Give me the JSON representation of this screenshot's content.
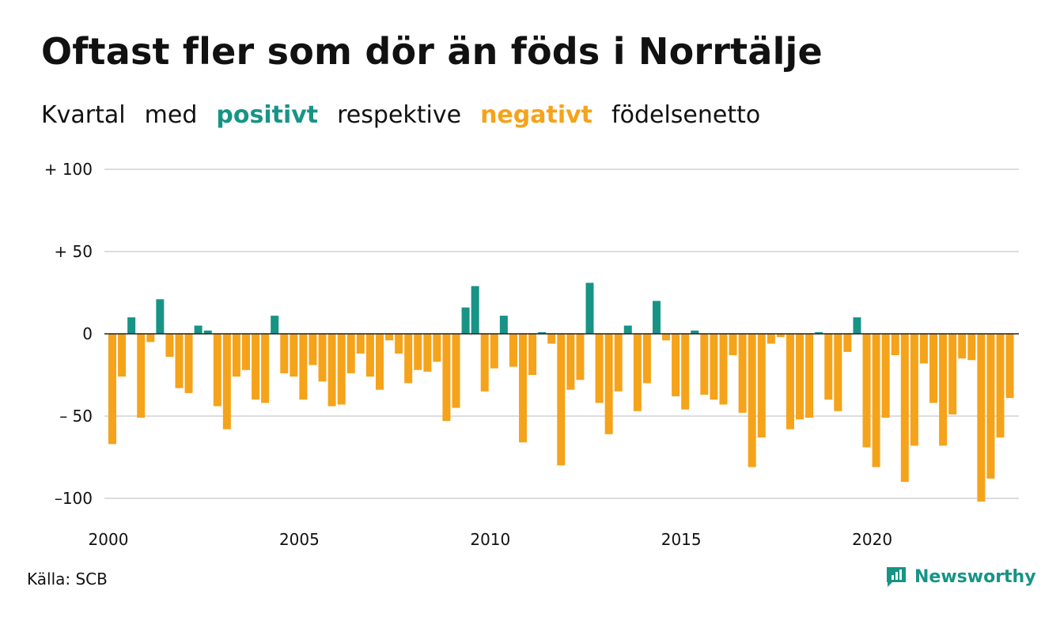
{
  "title": "Oftast fler som dör än föds i Norrtälje",
  "subtitle": {
    "w1": "Kvartal",
    "w2": "med",
    "positive": "positivt",
    "w3": "respektive",
    "negative": "negativt",
    "w4": "födelsenetto"
  },
  "source": "Källa: SCB",
  "brand": "Newsworthy",
  "colors": {
    "positive": "#179486",
    "negative": "#f5a31a",
    "grid": "#dddddd",
    "zero_line": "#222222",
    "text": "#111111"
  },
  "icons": {
    "brand_logo": "newsworthy-logo-icon"
  },
  "chart_data": {
    "type": "bar",
    "title": "Oftast fler som dör än föds i Norrtälje",
    "subtitle": "Kvartal med positivt respektive negativt födelsenetto",
    "xlabel": "",
    "ylabel": "",
    "ylim": [
      -100,
      100
    ],
    "yticks": [
      100,
      50,
      0,
      -50,
      -100
    ],
    "ytick_labels": [
      "+ 100",
      "+  50",
      "0",
      "– 50",
      "–100"
    ],
    "xtick_labels": [
      "2000",
      "2005",
      "2010",
      "2015",
      "2020"
    ],
    "grid": true,
    "start": "2000 Q1",
    "frequency": "quarter",
    "series": [
      {
        "values": [
          -67,
          -26,
          10,
          -51,
          -5,
          21,
          -14,
          -33,
          -36,
          5,
          2,
          -44,
          -58,
          -26,
          -22,
          -40,
          -42,
          11,
          -24,
          -26,
          -40,
          -19,
          -29,
          -44,
          -43,
          -24,
          -12,
          -26,
          -34,
          -4,
          -12,
          -30,
          -22,
          -23,
          -17,
          -53,
          -45,
          16,
          29,
          -35,
          -21,
          11,
          -20,
          -66,
          -25,
          1,
          -6,
          -80,
          -34,
          -28,
          31,
          -42,
          -61,
          -35,
          5,
          -47,
          -30,
          20,
          -4,
          -38,
          -46,
          2,
          -37,
          -40,
          -43,
          -13,
          -48,
          -81,
          -63,
          -6,
          -2,
          -58,
          -52,
          -51,
          1,
          -40,
          -47,
          -11,
          10,
          -69,
          -81,
          -51,
          -13,
          -90,
          -68,
          -18,
          -42,
          -68,
          -49,
          -15,
          -16,
          -102,
          -88,
          -63,
          -39
        ]
      }
    ]
  }
}
